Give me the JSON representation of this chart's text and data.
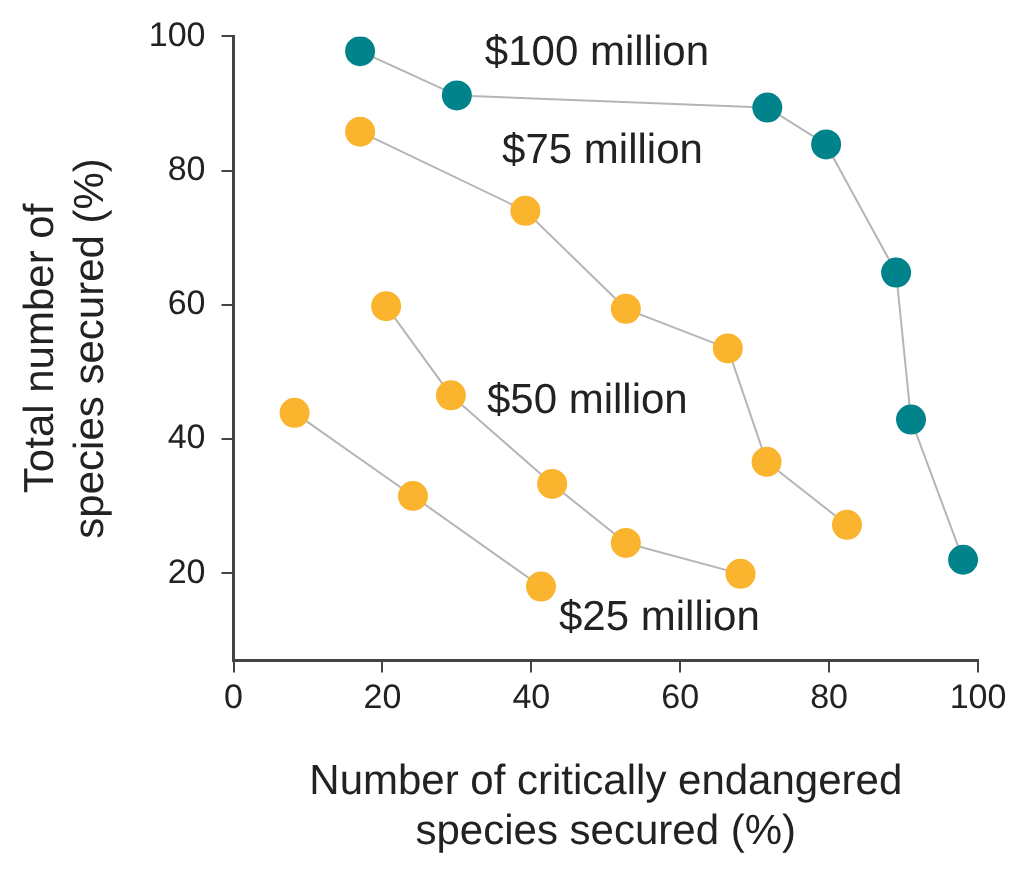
{
  "chart_data": {
    "type": "line",
    "xlabel": "Number of critically endangered\nspecies secured (%)",
    "ylabel": "Total number of\nspecies secured (%)",
    "xlim": [
      0,
      100
    ],
    "xticks": [
      0,
      20,
      40,
      60,
      80,
      100
    ],
    "ylim": [
      7,
      100
    ],
    "yticks": [
      20,
      40,
      60,
      80,
      100
    ],
    "grid": false,
    "legend": false,
    "marker": "circle",
    "line_style": "solid",
    "series": [
      {
        "name": "$100 million",
        "color": "#00838a",
        "x": [
          17,
          30,
          71.7,
          79.6,
          89,
          91,
          98
        ],
        "values": [
          97.8,
          91.2,
          89.4,
          83.9,
          64.8,
          42.9,
          22
        ]
      },
      {
        "name": "$75 million",
        "color": "#fbb42e",
        "x": [
          17,
          39.2,
          52.7,
          66.4,
          71.6,
          82.4
        ],
        "values": [
          85.8,
          74,
          59.4,
          53.5,
          36.6,
          27.2
        ]
      },
      {
        "name": "$50 million",
        "color": "#fbb42e",
        "x": [
          20.5,
          29.2,
          42.8,
          52.7,
          68.1
        ],
        "values": [
          59.8,
          46.5,
          33.3,
          24.5,
          19.9
        ]
      },
      {
        "name": "$25 million",
        "color": "#fbb42e",
        "x": [
          8.2,
          24.1,
          41.3
        ],
        "values": [
          43.9,
          31.5,
          18
        ]
      }
    ]
  }
}
